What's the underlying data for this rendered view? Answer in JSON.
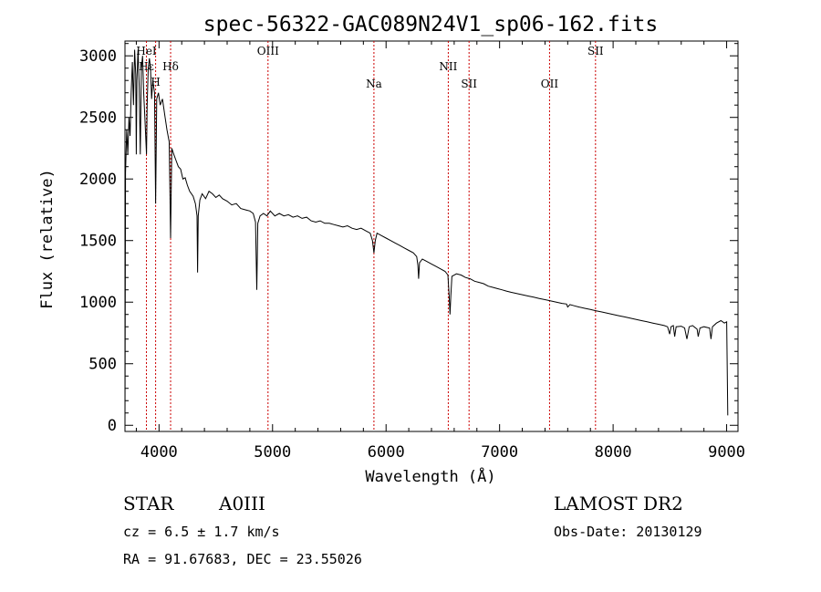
{
  "chart_data": {
    "type": "line",
    "title": "spec-56322-GAC089N24V1_sp06-162.fits",
    "xlabel": "Wavelength (Å)",
    "ylabel": "Flux (relative)",
    "xlim": [
      3700,
      9100
    ],
    "ylim": [
      -50,
      3120
    ],
    "x_ticks": [
      4000,
      5000,
      6000,
      7000,
      8000,
      9000
    ],
    "x_tick_labels": [
      "4000",
      "5000",
      "6000",
      "7000",
      "8000",
      "9000"
    ],
    "y_ticks": [
      0,
      500,
      1000,
      1500,
      2000,
      2500,
      3000
    ],
    "y_tick_labels": [
      "0",
      "500",
      "1000",
      "1500",
      "2000",
      "2500",
      "3000"
    ],
    "grid": false,
    "line_color": "#000000",
    "marker_color": "#cc0000",
    "lines": [
      {
        "label": "Hε",
        "wavelength": 3889,
        "tier": 1
      },
      {
        "label": "HeI",
        "wavelength": 3889,
        "tier": 0
      },
      {
        "label": "H",
        "wavelength": 3970,
        "tier": 2
      },
      {
        "label": "Hδ",
        "wavelength": 4102,
        "tier": 1
      },
      {
        "label": "OIII",
        "wavelength": 4960,
        "tier": 0
      },
      {
        "label": "Na",
        "wavelength": 5893,
        "tier": 3
      },
      {
        "label": "NII",
        "wavelength": 6548,
        "tier": 1
      },
      {
        "label": "SII",
        "wavelength": 6731,
        "tier": 3
      },
      {
        "label": "OII",
        "wavelength": 7440,
        "tier": 3
      },
      {
        "label": "SII",
        "wavelength": 7845,
        "tier": 0
      }
    ],
    "spectrum": [
      [
        3700,
        0
      ],
      [
        3705,
        2050
      ],
      [
        3715,
        2400
      ],
      [
        3725,
        2200
      ],
      [
        3735,
        2500
      ],
      [
        3745,
        2350
      ],
      [
        3755,
        2700
      ],
      [
        3765,
        2950
      ],
      [
        3775,
        2600
      ],
      [
        3785,
        3050
      ],
      [
        3795,
        2850
      ],
      [
        3800,
        2200
      ],
      [
        3805,
        2800
      ],
      [
        3815,
        3050
      ],
      [
        3825,
        2750
      ],
      [
        3835,
        2200
      ],
      [
        3845,
        2900
      ],
      [
        3855,
        3000
      ],
      [
        3865,
        2700
      ],
      [
        3875,
        2500
      ],
      [
        3885,
        2300
      ],
      [
        3890,
        2200
      ],
      [
        3895,
        2600
      ],
      [
        3905,
        2900
      ],
      [
        3915,
        2980
      ],
      [
        3925,
        2900
      ],
      [
        3935,
        2650
      ],
      [
        3945,
        2800
      ],
      [
        3960,
        2700
      ],
      [
        3970,
        1800
      ],
      [
        3980,
        2650
      ],
      [
        3995,
        2700
      ],
      [
        4010,
        2600
      ],
      [
        4030,
        2650
      ],
      [
        4050,
        2520
      ],
      [
        4070,
        2400
      ],
      [
        4090,
        2300
      ],
      [
        4102,
        1520
      ],
      [
        4112,
        2250
      ],
      [
        4130,
        2200
      ],
      [
        4150,
        2150
      ],
      [
        4170,
        2100
      ],
      [
        4190,
        2080
      ],
      [
        4210,
        2000
      ],
      [
        4230,
        2010
      ],
      [
        4250,
        1950
      ],
      [
        4270,
        1900
      ],
      [
        4300,
        1860
      ],
      [
        4320,
        1800
      ],
      [
        4335,
        1700
      ],
      [
        4340,
        1240
      ],
      [
        4345,
        1700
      ],
      [
        4360,
        1830
      ],
      [
        4380,
        1880
      ],
      [
        4410,
        1840
      ],
      [
        4440,
        1900
      ],
      [
        4470,
        1880
      ],
      [
        4500,
        1850
      ],
      [
        4530,
        1870
      ],
      [
        4560,
        1840
      ],
      [
        4600,
        1820
      ],
      [
        4640,
        1790
      ],
      [
        4680,
        1800
      ],
      [
        4720,
        1760
      ],
      [
        4760,
        1750
      ],
      [
        4800,
        1740
      ],
      [
        4830,
        1720
      ],
      [
        4850,
        1650
      ],
      [
        4861,
        1100
      ],
      [
        4870,
        1640
      ],
      [
        4890,
        1700
      ],
      [
        4920,
        1720
      ],
      [
        4950,
        1700
      ],
      [
        4980,
        1740
      ],
      [
        5020,
        1700
      ],
      [
        5060,
        1720
      ],
      [
        5100,
        1700
      ],
      [
        5140,
        1710
      ],
      [
        5180,
        1690
      ],
      [
        5220,
        1700
      ],
      [
        5260,
        1680
      ],
      [
        5300,
        1690
      ],
      [
        5340,
        1660
      ],
      [
        5380,
        1650
      ],
      [
        5420,
        1660
      ],
      [
        5460,
        1640
      ],
      [
        5500,
        1640
      ],
      [
        5540,
        1630
      ],
      [
        5580,
        1620
      ],
      [
        5620,
        1610
      ],
      [
        5660,
        1620
      ],
      [
        5700,
        1600
      ],
      [
        5740,
        1590
      ],
      [
        5780,
        1600
      ],
      [
        5820,
        1580
      ],
      [
        5860,
        1560
      ],
      [
        5880,
        1500
      ],
      [
        5893,
        1400
      ],
      [
        5905,
        1500
      ],
      [
        5920,
        1560
      ],
      [
        5960,
        1540
      ],
      [
        6000,
        1520
      ],
      [
        6040,
        1500
      ],
      [
        6080,
        1480
      ],
      [
        6120,
        1460
      ],
      [
        6160,
        1440
      ],
      [
        6200,
        1420
      ],
      [
        6240,
        1400
      ],
      [
        6270,
        1370
      ],
      [
        6280,
        1300
      ],
      [
        6287,
        1190
      ],
      [
        6295,
        1320
      ],
      [
        6320,
        1350
      ],
      [
        6360,
        1330
      ],
      [
        6400,
        1310
      ],
      [
        6440,
        1290
      ],
      [
        6480,
        1270
      ],
      [
        6520,
        1250
      ],
      [
        6545,
        1220
      ],
      [
        6556,
        1050
      ],
      [
        6563,
        900
      ],
      [
        6570,
        1050
      ],
      [
        6580,
        1210
      ],
      [
        6620,
        1230
      ],
      [
        6660,
        1220
      ],
      [
        6700,
        1200
      ],
      [
        6740,
        1190
      ],
      [
        6780,
        1170
      ],
      [
        6820,
        1160
      ],
      [
        6860,
        1150
      ],
      [
        6900,
        1130
      ],
      [
        6940,
        1120
      ],
      [
        6980,
        1110
      ],
      [
        7020,
        1100
      ],
      [
        7060,
        1090
      ],
      [
        7100,
        1080
      ],
      [
        7150,
        1070
      ],
      [
        7200,
        1060
      ],
      [
        7250,
        1050
      ],
      [
        7300,
        1040
      ],
      [
        7350,
        1030
      ],
      [
        7400,
        1020
      ],
      [
        7450,
        1010
      ],
      [
        7500,
        1000
      ],
      [
        7550,
        990
      ],
      [
        7590,
        985
      ],
      [
        7600,
        960
      ],
      [
        7620,
        980
      ],
      [
        7660,
        970
      ],
      [
        7700,
        960
      ],
      [
        7750,
        950
      ],
      [
        7800,
        940
      ],
      [
        7850,
        930
      ],
      [
        7900,
        920
      ],
      [
        7950,
        910
      ],
      [
        8000,
        900
      ],
      [
        8050,
        890
      ],
      [
        8100,
        880
      ],
      [
        8150,
        870
      ],
      [
        8200,
        860
      ],
      [
        8250,
        850
      ],
      [
        8300,
        840
      ],
      [
        8350,
        830
      ],
      [
        8400,
        820
      ],
      [
        8450,
        810
      ],
      [
        8480,
        800
      ],
      [
        8498,
        740
      ],
      [
        8510,
        800
      ],
      [
        8530,
        810
      ],
      [
        8542,
        720
      ],
      [
        8555,
        800
      ],
      [
        8600,
        805
      ],
      [
        8630,
        790
      ],
      [
        8650,
        700
      ],
      [
        8670,
        800
      ],
      [
        8700,
        810
      ],
      [
        8740,
        780
      ],
      [
        8750,
        720
      ],
      [
        8765,
        790
      ],
      [
        8800,
        800
      ],
      [
        8850,
        790
      ],
      [
        8862,
        700
      ],
      [
        8875,
        800
      ],
      [
        8910,
        830
      ],
      [
        8950,
        850
      ],
      [
        8980,
        830
      ],
      [
        9000,
        840
      ],
      [
        9010,
        80
      ]
    ]
  },
  "info": {
    "object_class": "STAR",
    "subclass": "A0III",
    "survey": "LAMOST DR2",
    "redshift": "cz = 6.5 ± 1.7 km/s",
    "obs_date": "Obs-Date: 20130129",
    "coords": "RA =  91.67683, DEC =  23.55026"
  }
}
